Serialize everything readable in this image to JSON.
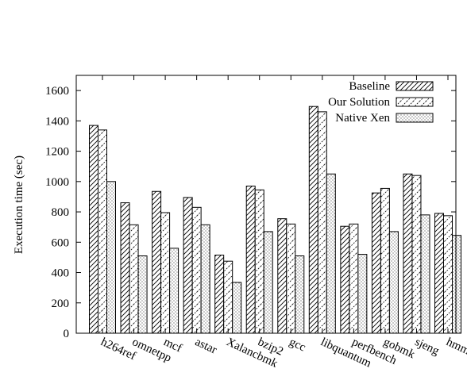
{
  "chart_data": {
    "type": "bar",
    "title": "",
    "xlabel": "",
    "ylabel": "Execution time (sec)",
    "ylim": [
      0,
      1700
    ],
    "yticks": [
      0,
      200,
      400,
      600,
      800,
      1000,
      1200,
      1400,
      1600
    ],
    "categories": [
      "h264ref",
      "omnetpp",
      "mcf",
      "astar",
      "Xalancbmk",
      "bzip2",
      "gcc",
      "libquantum",
      "perfbench",
      "gobmk",
      "sjeng",
      "hmmer"
    ],
    "series": [
      {
        "name": "Baseline",
        "pattern": "diagonal-dense",
        "values": [
          1370,
          860,
          935,
          895,
          515,
          970,
          755,
          1495,
          705,
          925,
          1050,
          790
        ]
      },
      {
        "name": "Our Solution",
        "pattern": "diagonal-sparse",
        "values": [
          1340,
          715,
          795,
          830,
          475,
          945,
          720,
          1460,
          720,
          955,
          1040,
          775
        ]
      },
      {
        "name": "Native Xen",
        "pattern": "dots",
        "values": [
          1000,
          510,
          560,
          715,
          335,
          670,
          510,
          1050,
          520,
          670,
          780,
          645
        ]
      }
    ],
    "grid": false,
    "legend_position": "top-right"
  }
}
